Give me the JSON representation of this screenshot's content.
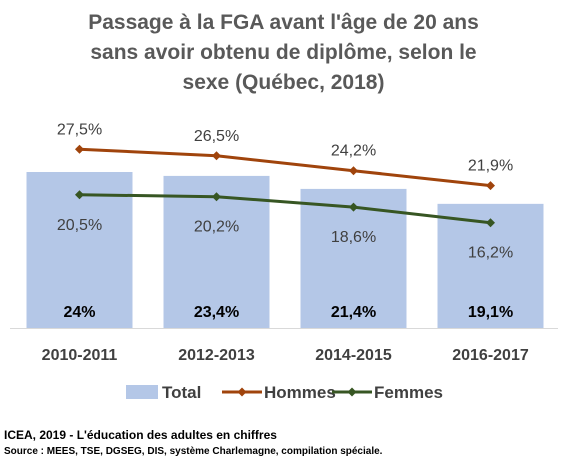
{
  "chart_data": {
    "type": "bar",
    "title_lines": [
      "Passage à la FGA avant l'âge de 20 ans",
      "sans avoir obtenu de diplôme, selon le",
      "sexe (Québec, 2018)"
    ],
    "categories": [
      "2010-2011",
      "2012-2013",
      "2014-2015",
      "2016-2017"
    ],
    "series": [
      {
        "name": "Total",
        "kind": "bar",
        "color": "#b4c7e7",
        "values": [
          24,
          23.4,
          21.4,
          19.1
        ],
        "labels": [
          "24%",
          "23,4%",
          "21,4%",
          "19,1%"
        ]
      },
      {
        "name": "Hommes",
        "kind": "line",
        "color": "#a0440c",
        "values": [
          27.5,
          26.5,
          24.2,
          21.9
        ],
        "labels": [
          "27,5%",
          "26,5%",
          "24,2%",
          "21,9%"
        ]
      },
      {
        "name": "Femmes",
        "kind": "line",
        "color": "#375623",
        "values": [
          20.5,
          20.2,
          18.6,
          16.2
        ],
        "labels": [
          "20,5%",
          "20,2%",
          "18,6%",
          "16,2%"
        ]
      }
    ],
    "xlabel": "",
    "ylabel": "",
    "ylim": [
      0,
      32
    ],
    "grid": false,
    "legend_position": "bottom"
  },
  "footer": {
    "credit": "ICEA, 2019 - L'éducation des adultes en chiffres",
    "source": "Source : MEES,  TSE, DGSEG, DIS, système Charlemagne,  compilation  spéciale."
  }
}
